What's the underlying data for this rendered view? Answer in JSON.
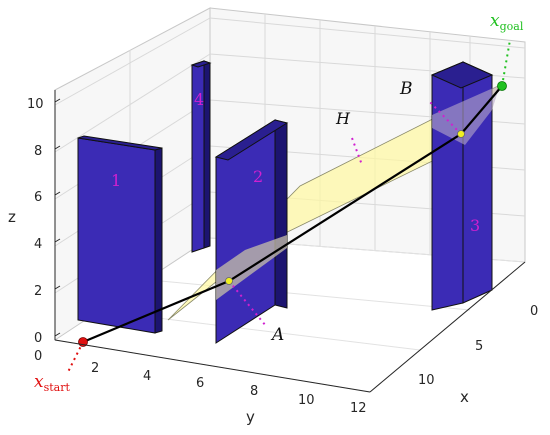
{
  "axes": {
    "x_label": "x",
    "y_label": "y",
    "z_label": "z",
    "x_ticks": [
      "0",
      "5",
      "10"
    ],
    "y_ticks": [
      "0",
      "2",
      "4",
      "6",
      "8",
      "10",
      "12"
    ],
    "z_ticks": [
      "0",
      "2",
      "4",
      "6",
      "8",
      "10"
    ]
  },
  "obstacles": [
    {
      "label": "1"
    },
    {
      "label": "2"
    },
    {
      "label": "3"
    },
    {
      "label": "4"
    }
  ],
  "annotations": {
    "start_label": "x",
    "start_sub": "start",
    "goal_label": "x",
    "goal_sub": "goal",
    "point_a": "A",
    "point_b": "B",
    "hyperplane": "H"
  },
  "colors": {
    "obstacle_face": "#3b2bb5",
    "obstacle_dark": "#1c1470",
    "plane": "#fff8a8",
    "path": "#000000",
    "start": "#e01010",
    "goal": "#20c020",
    "label_magenta": "#d020d0"
  }
}
